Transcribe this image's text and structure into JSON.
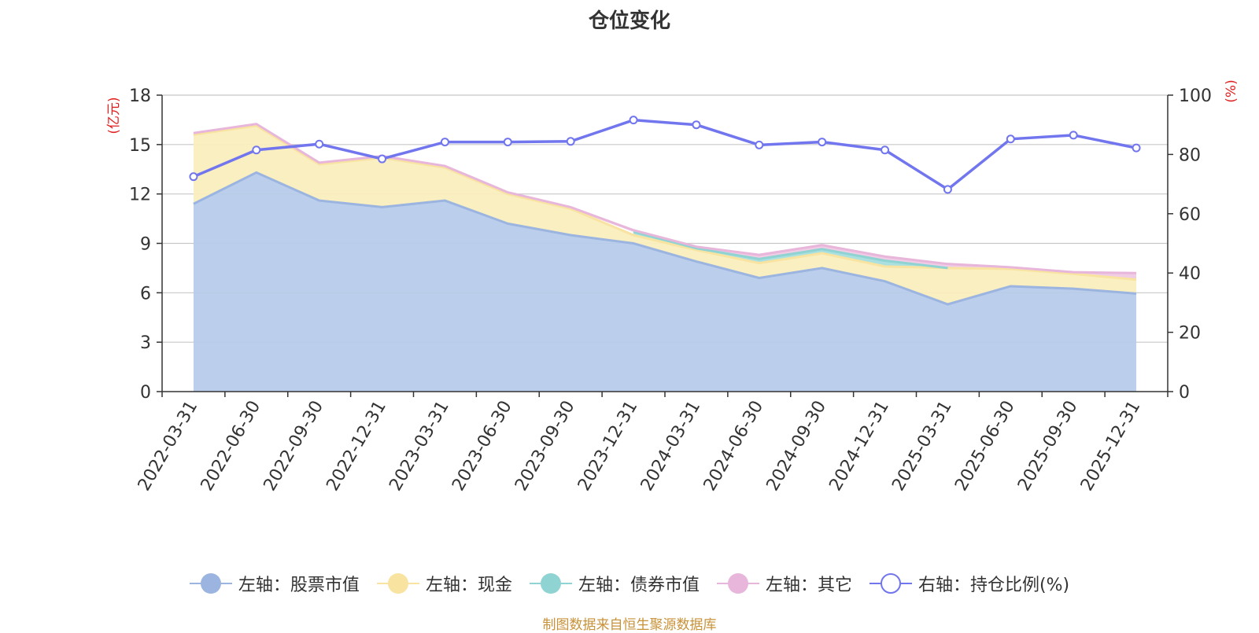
{
  "chart_data": {
    "type": "area",
    "title": "仓位变化",
    "left_axis_unit": "(亿元)",
    "right_axis_unit": "(%)",
    "categories": [
      "2022-03-31",
      "2022-06-30",
      "2022-09-30",
      "2022-12-31",
      "2023-03-31",
      "2023-06-30",
      "2023-09-30",
      "2023-12-31",
      "2024-03-31",
      "2024-06-30",
      "2024-09-30",
      "2024-12-31",
      "2025-03-31",
      "2025-06-30",
      "2025-09-30",
      "2025-12-31"
    ],
    "left_ylim": [
      0,
      18
    ],
    "left_ticks": [
      0,
      3,
      6,
      9,
      12,
      15,
      18
    ],
    "right_ylim": [
      0,
      100
    ],
    "right_ticks": [
      0,
      20,
      40,
      60,
      80,
      100
    ],
    "stacked_series": [
      {
        "name": "左轴：股票市值",
        "color": "#9bb5e0",
        "fill": "#b7cbea",
        "values": [
          11.4,
          13.3,
          11.6,
          11.2,
          11.6,
          10.2,
          9.5,
          9.0,
          7.9,
          6.9,
          7.5,
          6.7,
          5.3,
          6.4,
          6.25,
          5.95
        ]
      },
      {
        "name": "左轴：现金",
        "color": "#f8e3a0",
        "fill": "#faeebe",
        "values": [
          4.2,
          2.85,
          2.2,
          3.0,
          2.0,
          1.8,
          1.6,
          0.5,
          0.7,
          0.9,
          0.9,
          0.9,
          2.2,
          1.05,
          0.9,
          0.85
        ]
      },
      {
        "name": "左轴：债券市值",
        "color": "#8fd3d2",
        "fill": "#a7dede",
        "values": [
          null,
          null,
          null,
          null,
          null,
          null,
          null,
          0.2,
          0.1,
          0.25,
          0.25,
          0.35,
          0.0,
          null,
          null,
          null
        ]
      },
      {
        "name": "左轴：其它",
        "color": "#e7b6da",
        "fill": "#efc9e4",
        "values": [
          0.1,
          0.1,
          0.1,
          0.1,
          0.1,
          0.1,
          0.1,
          0.1,
          0.1,
          0.25,
          0.25,
          0.25,
          0.25,
          0.1,
          0.1,
          0.4
        ]
      }
    ],
    "line_series": {
      "name": "右轴：持仓比例(%)",
      "color": "#7276ee",
      "values": [
        72.5,
        81.5,
        83.5,
        78.5,
        84.2,
        84.2,
        84.4,
        91.6,
        90.0,
        83.2,
        84.2,
        81.5,
        68.2,
        85.2,
        86.5,
        82.2
      ]
    },
    "legend_position": "bottom",
    "grid": true
  },
  "footer": {
    "text": "制图数据来自恒生聚源数据库"
  }
}
